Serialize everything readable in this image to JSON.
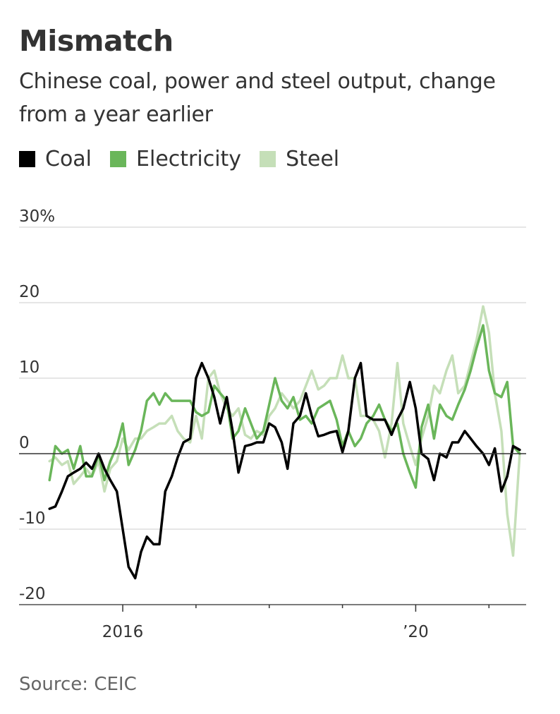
{
  "title": "Mismatch",
  "subtitle": "Chinese coal, power and steel output, change from a year earlier",
  "source": "Source: CEIC",
  "colors": {
    "coal": "#000000",
    "electricity": "#6ab65a",
    "steel": "#c5dfb8",
    "grid": "#dddddd",
    "zero": "#333333"
  },
  "chart_data": {
    "type": "line",
    "title": "Mismatch",
    "subtitle": "Chinese coal, power and steel output, change from a year earlier",
    "xlabel": "",
    "ylabel": "",
    "ylim": [
      -20,
      30
    ],
    "xlim": [
      2014.95,
      2021.45
    ],
    "yticks": [
      {
        "value": 30,
        "label": "30%"
      },
      {
        "value": 20,
        "label": "20"
      },
      {
        "value": 10,
        "label": "10"
      },
      {
        "value": 0,
        "label": "0"
      },
      {
        "value": -10,
        "label": "-10"
      },
      {
        "value": -20,
        "label": "-20"
      }
    ],
    "xticks": [
      2016,
      2017,
      2018,
      2019,
      2020,
      2021
    ],
    "xtick_labels": [
      {
        "value": 2016,
        "label": "2016"
      },
      {
        "value": 2020,
        "label": "’20"
      }
    ],
    "legend_position": "top-left",
    "series": [
      {
        "name": "Coal",
        "color_key": "coal",
        "x": [
          2015.0,
          2015.08,
          2015.17,
          2015.25,
          2015.33,
          2015.42,
          2015.5,
          2015.58,
          2015.67,
          2015.75,
          2015.83,
          2015.92,
          2016.0,
          2016.08,
          2016.17,
          2016.25,
          2016.33,
          2016.42,
          2016.5,
          2016.58,
          2016.67,
          2016.75,
          2016.83,
          2016.92,
          2017.0,
          2017.08,
          2017.17,
          2017.25,
          2017.33,
          2017.42,
          2017.5,
          2017.58,
          2017.67,
          2017.75,
          2017.83,
          2017.92,
          2018.0,
          2018.08,
          2018.17,
          2018.25,
          2018.33,
          2018.42,
          2018.5,
          2018.58,
          2018.67,
          2018.75,
          2018.83,
          2018.92,
          2019.0,
          2019.08,
          2019.17,
          2019.25,
          2019.33,
          2019.42,
          2019.5,
          2019.58,
          2019.67,
          2019.75,
          2019.83,
          2019.92,
          2020.0,
          2020.08,
          2020.17,
          2020.25,
          2020.33,
          2020.42,
          2020.5,
          2020.58,
          2020.67,
          2020.75,
          2020.83,
          2020.92,
          2021.0,
          2021.08,
          2021.17,
          2021.25,
          2021.33,
          2021.42
        ],
        "values": [
          -7.3,
          -7.0,
          -5.0,
          -3.0,
          -2.5,
          -2.0,
          -1.2,
          -2.0,
          0,
          -2.0,
          -3.5,
          -5.0,
          -10.0,
          -15.0,
          -16.5,
          -13.0,
          -11.0,
          -12.0,
          -12.0,
          -5.0,
          -3.0,
          -0.5,
          1.5,
          2.0,
          10.0,
          12.0,
          10.0,
          7.5,
          4.0,
          7.5,
          3.0,
          -2.5,
          1.0,
          1.2,
          1.5,
          1.5,
          4.0,
          3.5,
          1.5,
          -2.0,
          4.0,
          5.0,
          8.0,
          5.0,
          2.3,
          2.5,
          2.8,
          3.0,
          0.2,
          3.0,
          10.0,
          12.0,
          5.0,
          4.5,
          4.5,
          4.5,
          2.5,
          4.5,
          6.0,
          9.5,
          6.0,
          0,
          -0.7,
          -3.5,
          0,
          -0.5,
          1.5,
          1.5,
          3.0,
          2.0,
          1.0,
          0,
          -1.5,
          0.7,
          -5.0,
          -3.0,
          1.0,
          0.5
        ]
      },
      {
        "name": "Electricity",
        "color_key": "electricity",
        "x": [
          2015.0,
          2015.08,
          2015.17,
          2015.25,
          2015.33,
          2015.42,
          2015.5,
          2015.58,
          2015.67,
          2015.75,
          2015.83,
          2015.92,
          2016.0,
          2016.08,
          2016.17,
          2016.25,
          2016.33,
          2016.42,
          2016.5,
          2016.58,
          2016.67,
          2016.75,
          2016.83,
          2016.92,
          2017.0,
          2017.08,
          2017.17,
          2017.25,
          2017.33,
          2017.42,
          2017.5,
          2017.58,
          2017.67,
          2017.75,
          2017.83,
          2017.92,
          2018.0,
          2018.08,
          2018.17,
          2018.25,
          2018.33,
          2018.42,
          2018.5,
          2018.58,
          2018.67,
          2018.75,
          2018.83,
          2018.92,
          2019.0,
          2019.08,
          2019.17,
          2019.25,
          2019.33,
          2019.42,
          2019.5,
          2019.58,
          2019.67,
          2019.75,
          2019.83,
          2019.92,
          2020.0,
          2020.08,
          2020.17,
          2020.25,
          2020.33,
          2020.42,
          2020.5,
          2020.58,
          2020.67,
          2020.75,
          2020.83,
          2020.92,
          2021.0,
          2021.08,
          2021.17,
          2021.25,
          2021.33,
          2021.42
        ],
        "values": [
          -3.5,
          1.0,
          0,
          0.5,
          -2.0,
          1.0,
          -3.0,
          -3.0,
          0,
          -3.5,
          -1.0,
          1.0,
          4.0,
          -1.5,
          0.5,
          3.0,
          7.0,
          8.0,
          6.5,
          8.0,
          7.0,
          7.0,
          7.0,
          7.0,
          5.5,
          5.0,
          5.5,
          9.0,
          8.0,
          7.0,
          2.0,
          3.0,
          6.0,
          4.0,
          2.0,
          3.0,
          6.5,
          10.0,
          7.0,
          6.0,
          7.5,
          4.5,
          5.0,
          4.0,
          6.0,
          6.5,
          7.0,
          4.5,
          1.0,
          3.0,
          1.0,
          2.0,
          4.0,
          5.0,
          6.5,
          4.5,
          3.0,
          4.0,
          0,
          -2.5,
          -4.5,
          3.5,
          6.5,
          2.0,
          6.5,
          5.0,
          4.5,
          6.5,
          8.5,
          11.0,
          14.0,
          17.0,
          11.0,
          8.0,
          7.5,
          9.5,
          1.0,
          0
        ]
      },
      {
        "name": "Steel",
        "color_key": "steel",
        "x": [
          2015.0,
          2015.08,
          2015.17,
          2015.25,
          2015.33,
          2015.42,
          2015.5,
          2015.58,
          2015.67,
          2015.75,
          2015.83,
          2015.92,
          2016.0,
          2016.08,
          2016.17,
          2016.25,
          2016.33,
          2016.42,
          2016.5,
          2016.58,
          2016.67,
          2016.75,
          2016.83,
          2016.92,
          2017.0,
          2017.08,
          2017.17,
          2017.25,
          2017.33,
          2017.42,
          2017.5,
          2017.58,
          2017.67,
          2017.75,
          2017.83,
          2017.92,
          2018.0,
          2018.08,
          2018.17,
          2018.25,
          2018.33,
          2018.42,
          2018.5,
          2018.58,
          2018.67,
          2018.75,
          2018.83,
          2018.92,
          2019.0,
          2019.08,
          2019.17,
          2019.25,
          2019.33,
          2019.42,
          2019.5,
          2019.58,
          2019.67,
          2019.75,
          2019.83,
          2019.92,
          2020.0,
          2020.08,
          2020.17,
          2020.25,
          2020.33,
          2020.42,
          2020.5,
          2020.58,
          2020.67,
          2020.75,
          2020.83,
          2020.92,
          2021.0,
          2021.08,
          2021.17,
          2021.25,
          2021.33,
          2021.42
        ],
        "values": [
          -1.0,
          -0.5,
          -1.5,
          -1.0,
          -4.0,
          -3.0,
          -2.0,
          -3.0,
          -1.0,
          -5.0,
          -2.0,
          -1.0,
          2.0,
          0.5,
          2.0,
          2.0,
          3.0,
          3.5,
          4.0,
          4.0,
          5.0,
          3.0,
          2.0,
          1.5,
          5.0,
          2.0,
          10.0,
          11.0,
          8.0,
          6.0,
          5.0,
          6.0,
          2.5,
          2.0,
          3.0,
          2.5,
          5.0,
          6.0,
          8.0,
          7.0,
          6.0,
          7.0,
          9.0,
          11.0,
          8.5,
          9.0,
          10.0,
          10.0,
          13.0,
          10.0,
          10.0,
          5.0,
          5.0,
          4.5,
          3.0,
          -0.5,
          4.0,
          12.0,
          4.0,
          1.0,
          -1.5,
          2.0,
          5.0,
          9.0,
          8.0,
          11.0,
          13.0,
          8.0,
          9.0,
          12.0,
          15.0,
          19.5,
          16.0,
          8.0,
          3.0,
          -8.0,
          -13.5,
          0
        ]
      }
    ]
  }
}
